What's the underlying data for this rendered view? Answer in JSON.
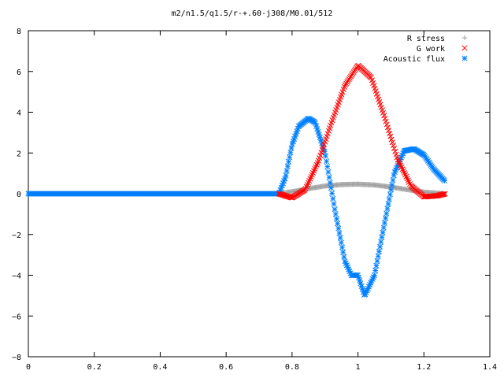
{
  "chart_data": {
    "type": "scatter",
    "title": "m2/n1.5/q1.5/r-+.60-j308/M0.01/512",
    "xlabel": "",
    "ylabel": "",
    "xlim": [
      0,
      1.4
    ],
    "ylim": [
      -8,
      8
    ],
    "x_ticks": [
      "0",
      "0.2",
      "0.4",
      "0.6",
      "0.8",
      "1",
      "1.2",
      "1.4"
    ],
    "y_ticks": [
      "8",
      "6",
      "4",
      "2",
      "0",
      "−2",
      "−4",
      "−6",
      "−8"
    ],
    "grid": false,
    "legend_position": "top-right",
    "series": [
      {
        "name": "R stress",
        "marker": "+",
        "color": "#a0a0a0",
        "x": [
          0.0,
          0.76,
          0.8,
          0.85,
          0.9,
          0.95,
          1.0,
          1.05,
          1.1,
          1.15,
          1.2,
          1.265
        ],
        "y": [
          0.0,
          0.0,
          0.1,
          0.25,
          0.38,
          0.45,
          0.47,
          0.43,
          0.33,
          0.2,
          0.08,
          0.0
        ]
      },
      {
        "name": "G work",
        "marker": "x",
        "color": "#ff0000",
        "x": [
          0.76,
          0.8,
          0.84,
          0.88,
          0.92,
          0.96,
          1.0,
          1.04,
          1.08,
          1.12,
          1.16,
          1.2,
          1.24,
          1.265
        ],
        "y": [
          0.0,
          -0.2,
          0.2,
          1.6,
          3.5,
          5.3,
          6.3,
          5.7,
          3.8,
          1.7,
          0.4,
          -0.15,
          -0.1,
          0.0
        ]
      },
      {
        "name": "Acoustic flux",
        "marker": "*",
        "color": "#0080ff",
        "x": [
          0.0,
          0.76,
          0.78,
          0.8,
          0.82,
          0.85,
          0.87,
          0.9,
          0.93,
          0.96,
          0.98,
          1.0,
          1.02,
          1.05,
          1.08,
          1.11,
          1.14,
          1.17,
          1.2,
          1.23,
          1.265
        ],
        "y": [
          0.0,
          0.0,
          0.8,
          2.4,
          3.3,
          3.7,
          3.5,
          2.0,
          -0.8,
          -3.3,
          -4.0,
          -4.0,
          -5.0,
          -4.0,
          -1.5,
          1.0,
          2.1,
          2.2,
          1.9,
          1.2,
          0.6
        ]
      }
    ]
  }
}
